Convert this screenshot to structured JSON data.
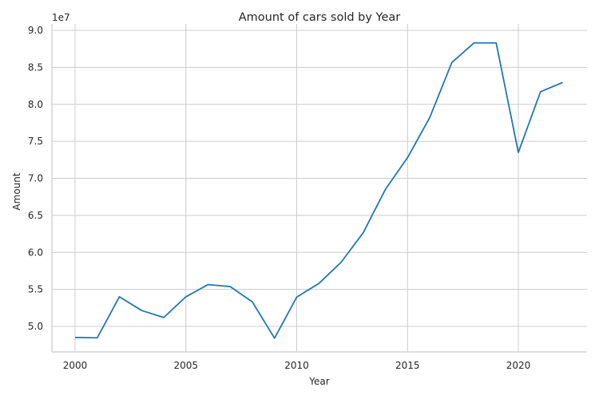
{
  "chart_data": {
    "type": "line",
    "title": "Amount of cars sold by Year",
    "xlabel": "Year",
    "ylabel": "Amount",
    "y_offset_text": "1e7",
    "xlim": [
      1999.5,
      2022.6
    ],
    "ylim": [
      46500000.0,
      90000000.0
    ],
    "grid": true,
    "x_ticks": [
      2000,
      2005,
      2010,
      2015,
      2020
    ],
    "y_ticks": [
      5.0,
      5.5,
      6.0,
      6.5,
      7.0,
      7.5,
      8.0,
      8.5,
      9.0
    ],
    "y_tick_labels": [
      "5.0",
      "5.5",
      "6.0",
      "6.5",
      "7.0",
      "7.5",
      "8.0",
      "8.5",
      "9.0"
    ],
    "line_color": "#1f77b4",
    "series": [
      {
        "x": [
          2000,
          2001,
          2002,
          2003,
          2004,
          2005,
          2006,
          2007,
          2008,
          2009,
          2010,
          2011,
          2012,
          2013,
          2014,
          2015,
          2016,
          2017,
          2018,
          2019,
          2020,
          2021,
          2022
        ],
        "values": [
          48500000,
          48450000,
          54000000,
          52150000,
          51200000,
          54000000,
          55650000,
          55380000,
          53300000,
          48400000,
          53950000,
          55800000,
          58650000,
          62650000,
          68500000,
          72800000,
          78200000,
          85650000,
          88300000,
          88300000,
          73500000,
          81700000,
          82950000
        ]
      }
    ]
  }
}
